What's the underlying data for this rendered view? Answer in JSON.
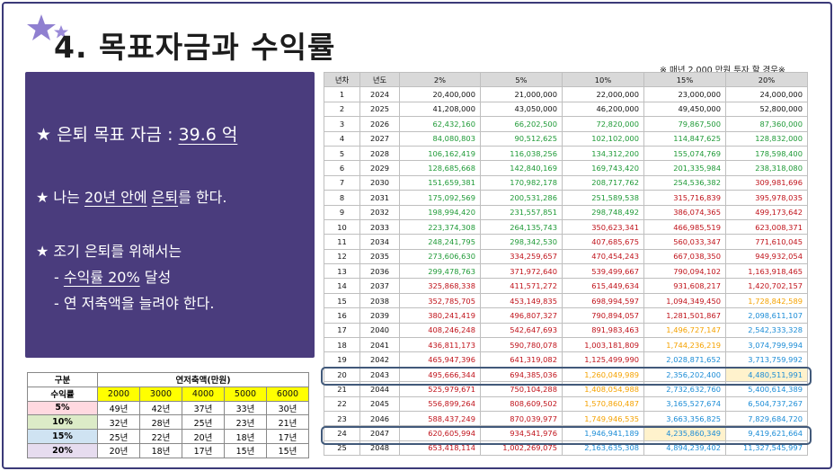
{
  "title": "4. 목표자금과 수익률",
  "panel": {
    "line1_prefix": "★ 은퇴 목표 자금 : ",
    "line1_value": "39.6 억",
    "line2_prefix": "★ 나는 ",
    "line2_years": "20년 안에",
    "line2_space": " ",
    "line2_retire": "은퇴",
    "line2_suffix": "를 한다.",
    "line3": "★ 조기 은퇴를 위해서는",
    "line4_prefix": "- ",
    "line4_value": "수익률 20%",
    "line4_suffix": " 달성",
    "line5": "- 연 저축액을 늘려야 한다."
  },
  "note": "※ 매년 2,000 만원 투자 할 경우※",
  "main_table": {
    "headers": [
      "년차",
      "년도",
      "2%",
      "5%",
      "10%",
      "15%",
      "20%"
    ],
    "rows": [
      [
        "1",
        "2024",
        "20,400,000",
        "21,000,000",
        "22,000,000",
        "23,000,000",
        "24,000,000"
      ],
      [
        "2",
        "2025",
        "41,208,000",
        "43,050,000",
        "46,200,000",
        "49,450,000",
        "52,800,000"
      ],
      [
        "3",
        "2026",
        "62,432,160",
        "66,202,500",
        "72,820,000",
        "79,867,500",
        "87,360,000"
      ],
      [
        "4",
        "2027",
        "84,080,803",
        "90,512,625",
        "102,102,000",
        "114,847,625",
        "128,832,000"
      ],
      [
        "5",
        "2028",
        "106,162,419",
        "116,038,256",
        "134,312,200",
        "155,074,769",
        "178,598,400"
      ],
      [
        "6",
        "2029",
        "128,685,668",
        "142,840,169",
        "169,743,420",
        "201,335,984",
        "238,318,080"
      ],
      [
        "7",
        "2030",
        "151,659,381",
        "170,982,178",
        "208,717,762",
        "254,536,382",
        "309,981,696"
      ],
      [
        "8",
        "2031",
        "175,092,569",
        "200,531,286",
        "251,589,538",
        "315,716,839",
        "395,978,035"
      ],
      [
        "9",
        "2032",
        "198,994,420",
        "231,557,851",
        "298,748,492",
        "386,074,365",
        "499,173,642"
      ],
      [
        "10",
        "2033",
        "223,374,308",
        "264,135,743",
        "350,623,341",
        "466,985,519",
        "623,008,371"
      ],
      [
        "11",
        "2034",
        "248,241,795",
        "298,342,530",
        "407,685,675",
        "560,033,347",
        "771,610,045"
      ],
      [
        "12",
        "2035",
        "273,606,630",
        "334,259,657",
        "470,454,243",
        "667,038,350",
        "949,932,054"
      ],
      [
        "13",
        "2036",
        "299,478,763",
        "371,972,640",
        "539,499,667",
        "790,094,102",
        "1,163,918,465"
      ],
      [
        "14",
        "2037",
        "325,868,338",
        "411,571,272",
        "615,449,634",
        "931,608,217",
        "1,420,702,157"
      ],
      [
        "15",
        "2038",
        "352,785,705",
        "453,149,835",
        "698,994,597",
        "1,094,349,450",
        "1,728,842,589"
      ],
      [
        "16",
        "2039",
        "380,241,419",
        "496,807,327",
        "790,894,057",
        "1,281,501,867",
        "2,098,611,107"
      ],
      [
        "17",
        "2040",
        "408,246,248",
        "542,647,693",
        "891,983,463",
        "1,496,727,147",
        "2,542,333,328"
      ],
      [
        "18",
        "2041",
        "436,811,173",
        "590,780,078",
        "1,003,181,809",
        "1,744,236,219",
        "3,074,799,994"
      ],
      [
        "19",
        "2042",
        "465,947,396",
        "641,319,082",
        "1,125,499,990",
        "2,028,871,652",
        "3,713,759,992"
      ],
      [
        "20",
        "2043",
        "495,666,344",
        "694,385,036",
        "1,260,049,989",
        "2,356,202,400",
        "4,480,511,991"
      ],
      [
        "21",
        "2044",
        "525,979,671",
        "750,104,288",
        "1,408,054,988",
        "2,732,632,760",
        "5,400,614,389"
      ],
      [
        "22",
        "2045",
        "556,899,264",
        "808,609,502",
        "1,570,860,487",
        "3,165,527,674",
        "6,504,737,267"
      ],
      [
        "23",
        "2046",
        "588,437,249",
        "870,039,977",
        "1,749,946,535",
        "3,663,356,825",
        "7,829,684,720"
      ],
      [
        "24",
        "2047",
        "620,605,994",
        "934,541,976",
        "1,946,941,189",
        "4,235,860,349",
        "9,419,621,664"
      ],
      [
        "25",
        "2048",
        "653,418,114",
        "1,002,269,075",
        "2,163,635,308",
        "4,894,239,402",
        "11,327,545,997"
      ]
    ]
  },
  "small_table": {
    "col1_header": "구분",
    "span_header": "연저축액(만원)",
    "row_label": "수익률",
    "amounts": [
      "2000",
      "3000",
      "4000",
      "5000",
      "6000"
    ],
    "rows": [
      {
        "label": "5%",
        "values": [
          "49년",
          "42년",
          "37년",
          "33년",
          "30년"
        ]
      },
      {
        "label": "10%",
        "values": [
          "32년",
          "28년",
          "25년",
          "23년",
          "21년"
        ]
      },
      {
        "label": "15%",
        "values": [
          "25년",
          "22년",
          "20년",
          "18년",
          "17년"
        ]
      },
      {
        "label": "20%",
        "values": [
          "20년",
          "18년",
          "17년",
          "15년",
          "15년"
        ]
      }
    ]
  },
  "colors": {
    "panel_bg": "#4a3c7d",
    "star_purple": "#8f7fd0",
    "highlight_border": "#41597a",
    "target_fill": "#fff2cc",
    "row_5": "#ffd9e0",
    "row_10": "#dcebc7",
    "row_15": "#cfe3f2",
    "row_20": "#e6dcef"
  }
}
